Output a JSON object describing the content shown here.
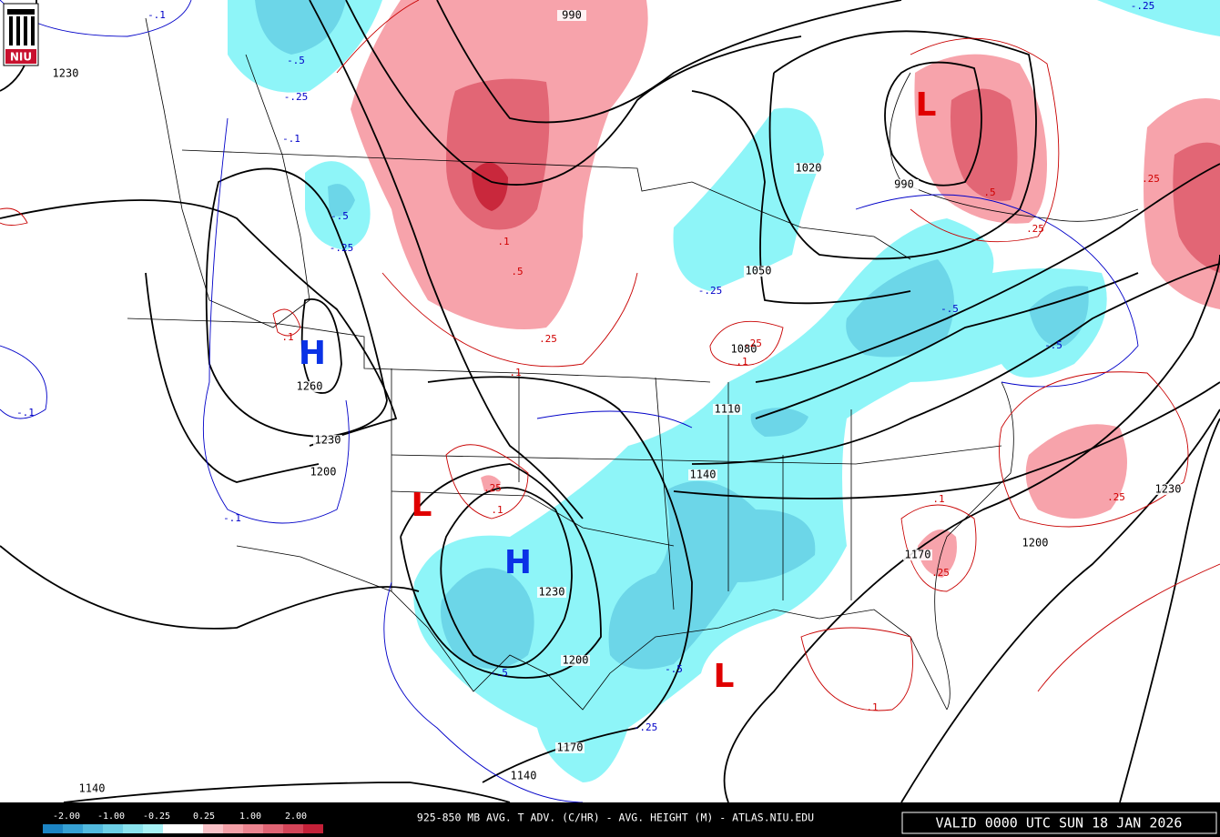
{
  "header": {
    "logo": "NIU"
  },
  "map": {
    "centers": [
      "L",
      "L",
      "L",
      "H",
      "H"
    ],
    "height_labels": [
      "990",
      "1230",
      "1020",
      "990",
      "1050",
      "1080",
      "1260",
      "1110",
      "1230",
      "1200",
      "1140",
      "1230",
      "1200",
      "1170",
      "1200",
      "1230",
      "1170",
      "1140",
      "1140"
    ],
    "advection_labels": [
      "-.1",
      "-.5",
      "-.25",
      "-.1",
      "-.5",
      "-.25",
      "-.25",
      "-.5",
      "-.5",
      "-.1",
      "-.1",
      "-.5",
      "-.5",
      "-.25",
      "-.25",
      ".5",
      ".25",
      ".25",
      ".1",
      ".5",
      ".25",
      ".1",
      ".1",
      ".1",
      ".25",
      ".1",
      ".1",
      ".25",
      ".25",
      ".1",
      ".25"
    ]
  },
  "colorbar": {
    "labels": [
      "-2.00",
      "-1.00",
      "-0.25",
      "0.25",
      "1.00",
      "2.00"
    ],
    "colors": [
      "#1c84c4",
      "#35a0d4",
      "#52b9de",
      "#6ccfe6",
      "#8ae3ee",
      "#a8f2f6",
      "#ffffff",
      "#ffffff",
      "#f9c2c8",
      "#f4a0a8",
      "#ec8490",
      "#e06474",
      "#d44458",
      "#c42038"
    ]
  },
  "footer": {
    "title": "925-850 MB AVG. T ADV. (C/HR) - AVG. HEIGHT (M) - ATLAS.NIU.EDU",
    "valid": "VALID 0000 UTC SUN 18 JAN 2026"
  }
}
